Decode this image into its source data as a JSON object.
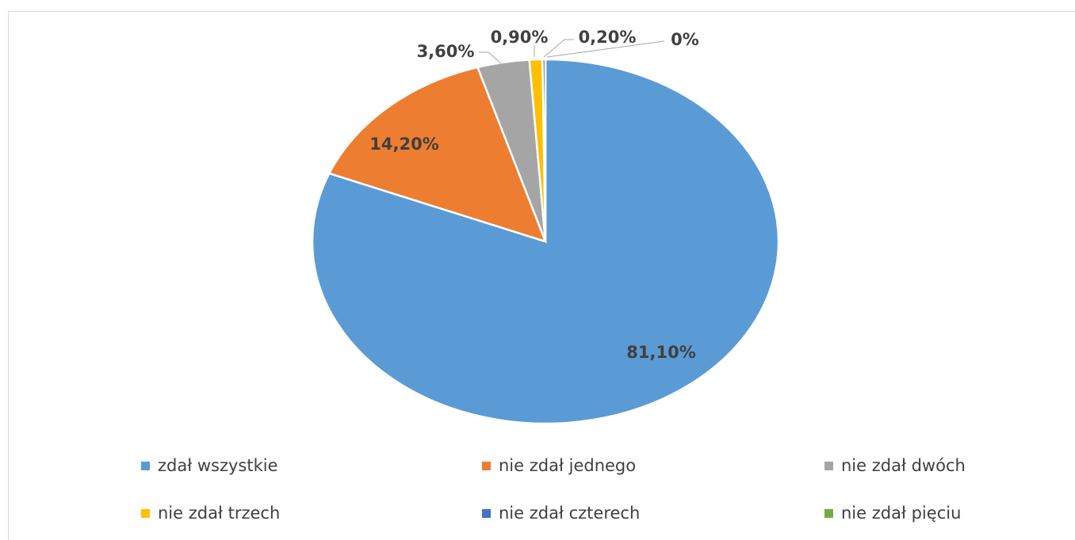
{
  "chart_data": {
    "type": "pie",
    "title": "",
    "slices": [
      {
        "name": "zdał wszystkie",
        "value": 81.1,
        "label": "81,10%",
        "color": "#5B9BD5"
      },
      {
        "name": "nie zdał jednego",
        "value": 14.2,
        "label": "14,20%",
        "color": "#ED7D31"
      },
      {
        "name": "nie zdał dwóch",
        "value": 3.6,
        "label": "3,60%",
        "color": "#A5A5A5"
      },
      {
        "name": "nie zdał trzech",
        "value": 0.9,
        "label": "0,90%",
        "color": "#FFC000"
      },
      {
        "name": "nie zdał czterech",
        "value": 0.2,
        "label": "0,20%",
        "color": "#4472C4"
      },
      {
        "name": "nie zdał pięciu",
        "value": 0,
        "label": "0%",
        "color": "#70AD47"
      }
    ],
    "legend_position": "bottom"
  }
}
